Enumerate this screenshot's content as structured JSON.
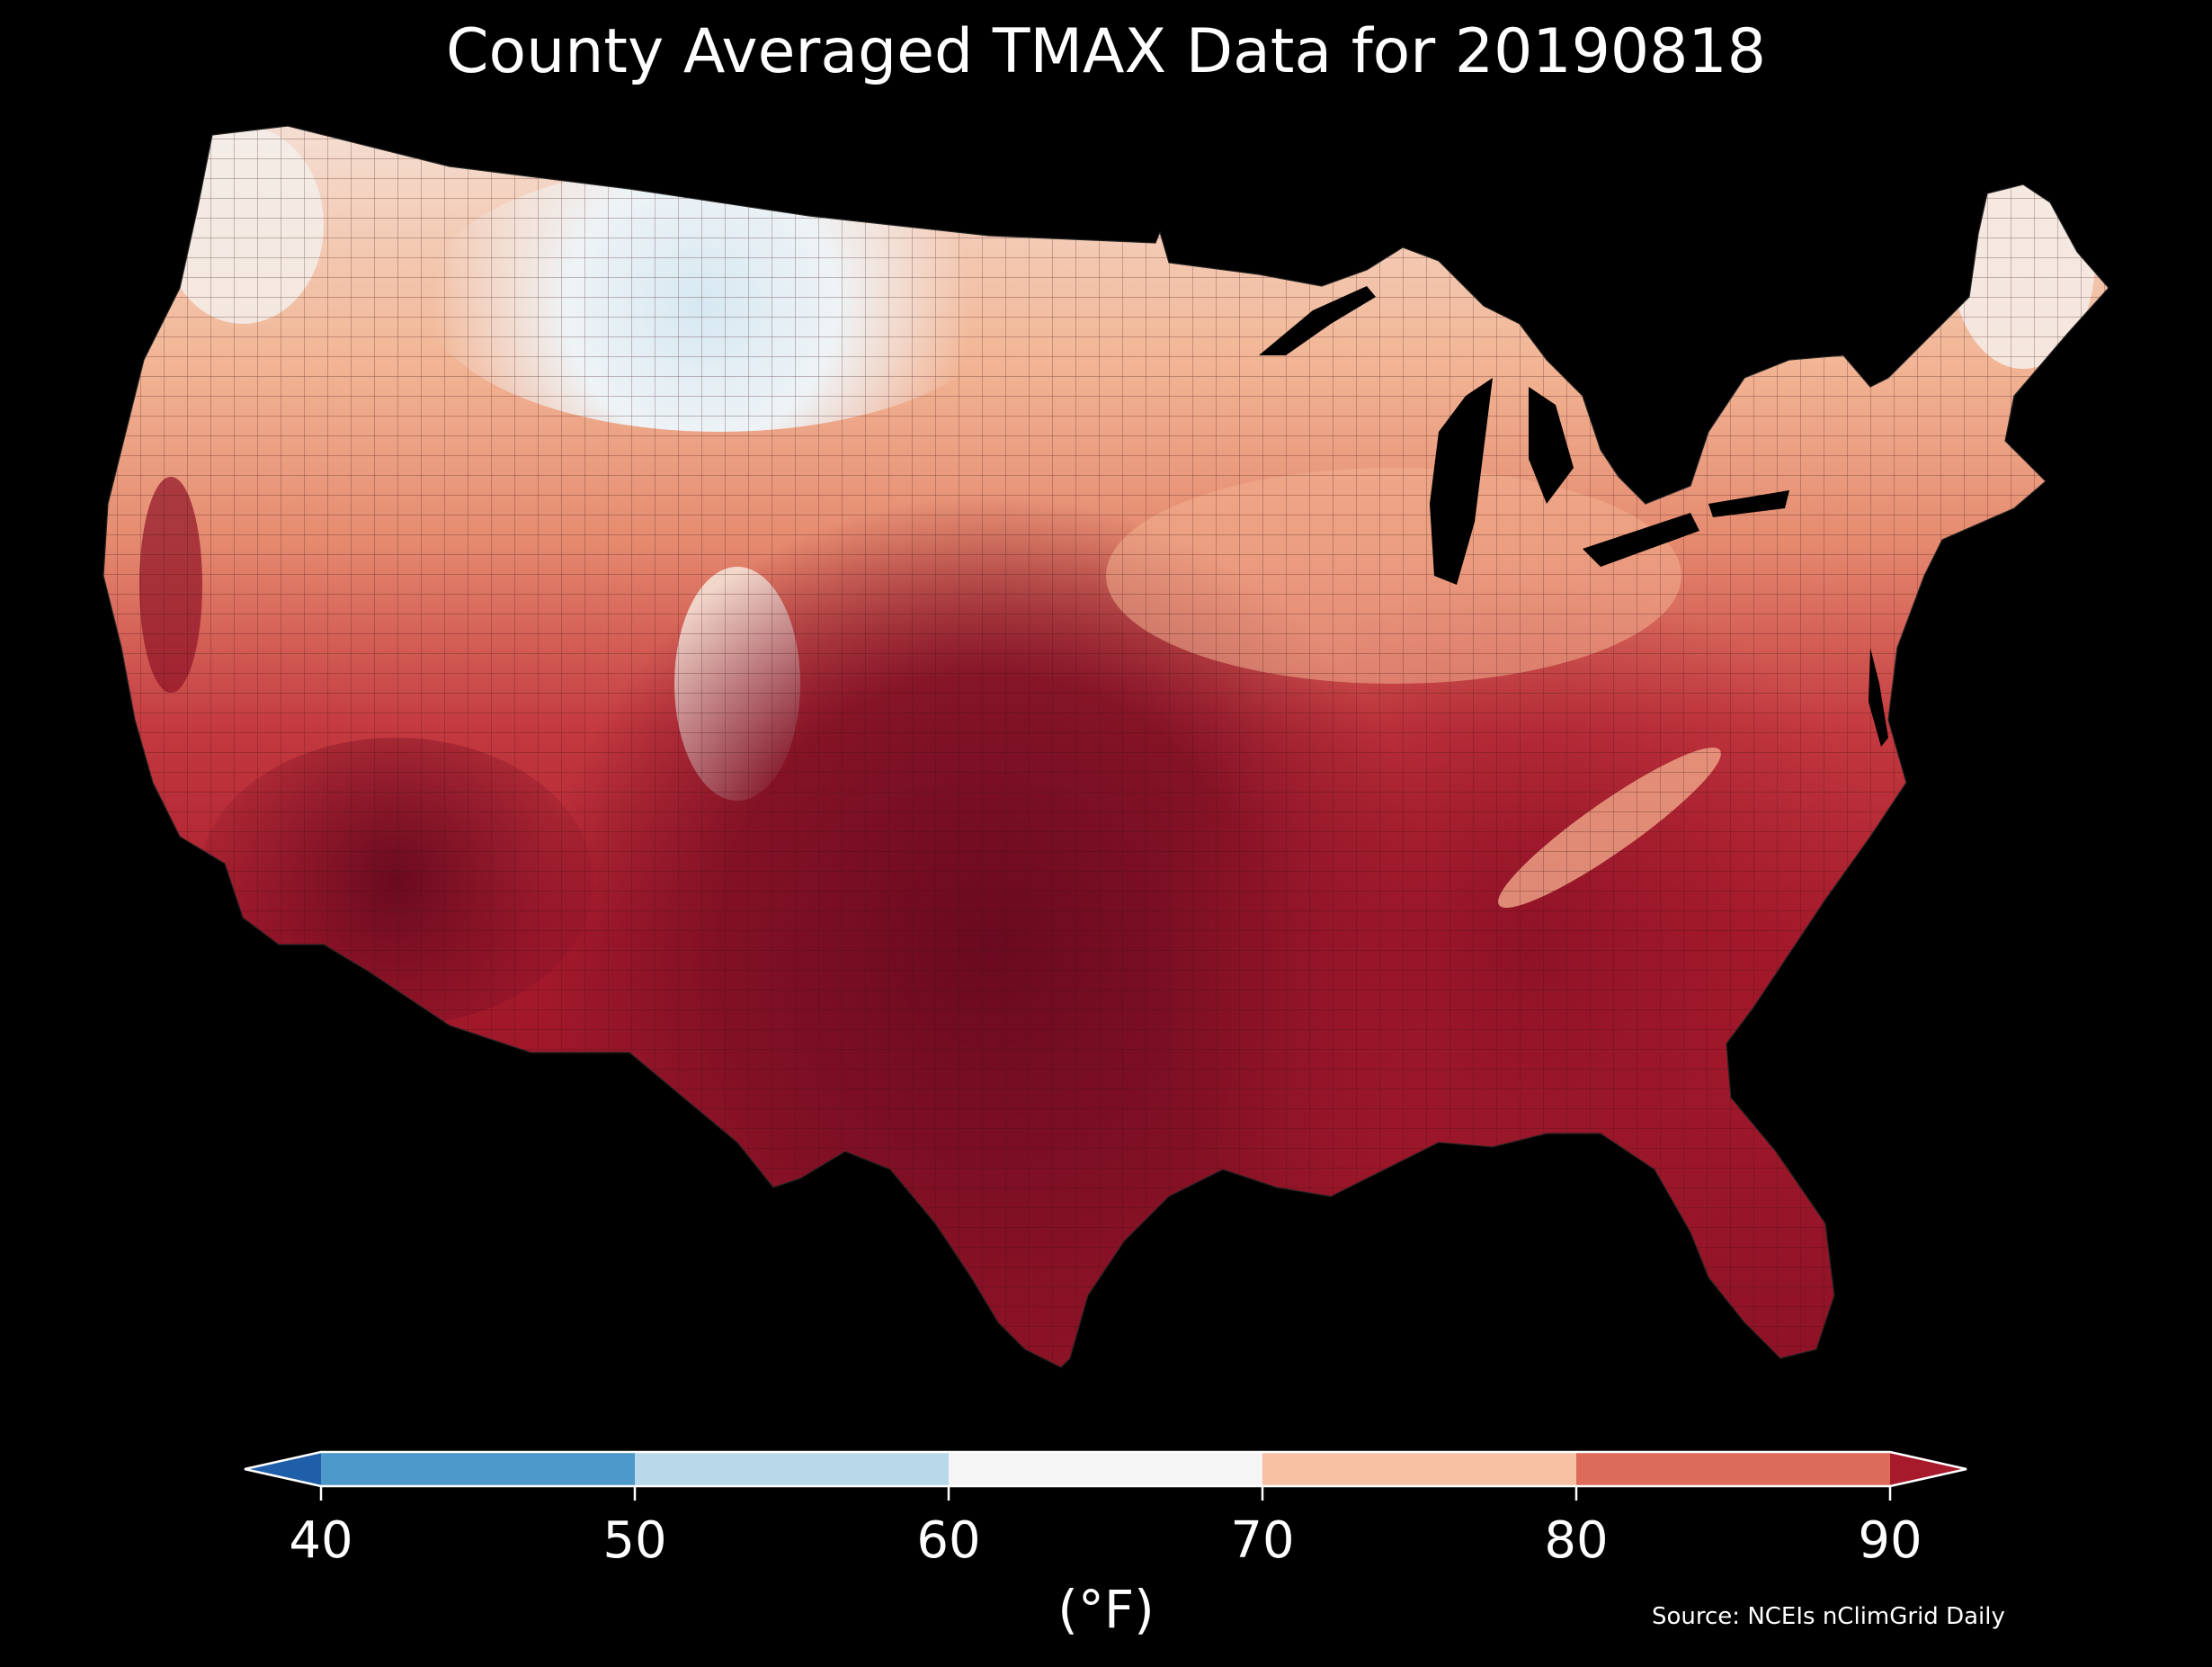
{
  "title": "County Averaged TMAX Data for 20190818",
  "colorbar": {
    "ticks": [
      "40",
      "50",
      "60",
      "70",
      "80",
      "90"
    ],
    "unit": "(°F)",
    "bins": [
      {
        "range": "<40",
        "color": "#1f5ea8"
      },
      {
        "range": "40-50",
        "color": "#4c98c8"
      },
      {
        "range": "50-60",
        "color": "#b8d9ea"
      },
      {
        "range": "60-70",
        "color": "#f5f5f5"
      },
      {
        "range": "70-80",
        "color": "#f7c0a3"
      },
      {
        "range": "80-90",
        "color": "#dc6b59"
      },
      {
        "range": ">90",
        "color": "#a61a2c"
      }
    ]
  },
  "source": "Source: NCEIs nClimGrid Daily",
  "map": {
    "region": "Contiguous United States",
    "variable": "TMAX",
    "boundaries": "county",
    "background": "#000000"
  }
}
